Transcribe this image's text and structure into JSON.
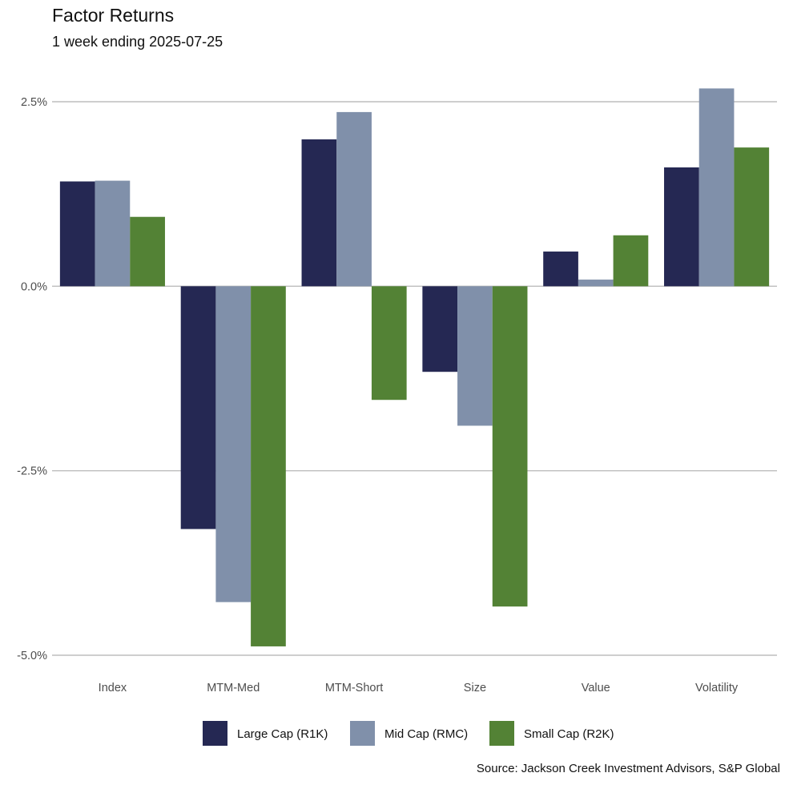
{
  "chart_data": {
    "type": "bar",
    "title": "Factor Returns",
    "subtitle": "1 week ending 2025-07-25",
    "caption": "Source: Jackson Creek Investment Advisors, S&P Global",
    "categories": [
      "Index",
      "MTM-Med",
      "MTM-Short",
      "Size",
      "Value",
      "Volatility"
    ],
    "series": [
      {
        "name": "Large Cap (R1K)",
        "color": "#252853",
        "values": [
          1.42,
          -3.29,
          1.99,
          -1.16,
          0.47,
          1.61
        ]
      },
      {
        "name": "Mid Cap (RMC)",
        "color": "#8090aa",
        "values": [
          1.43,
          -4.28,
          2.36,
          -1.89,
          0.09,
          2.68
        ]
      },
      {
        "name": "Small Cap (R2K)",
        "color": "#538235",
        "values": [
          0.94,
          -4.88,
          -1.54,
          -4.34,
          0.69,
          1.88
        ]
      }
    ],
    "yticks": [
      2.5,
      0.0,
      -2.5,
      -5.0
    ],
    "ytick_labels": [
      "2.5%",
      "0.0%",
      "-2.5%",
      "-5.0%"
    ],
    "ylim": [
      -5.0,
      2.5
    ],
    "grid": "horizontal",
    "legend_position": "bottom"
  }
}
